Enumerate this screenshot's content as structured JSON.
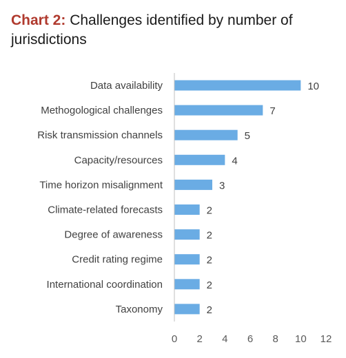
{
  "title": {
    "prefix": "Chart 2:",
    "text": "Challenges identified by number of jurisdictions"
  },
  "colors": {
    "bar": "#6aace4",
    "axis": "#bfbfbf",
    "title_prefix": "#b03a2e"
  },
  "chart_data": {
    "type": "bar",
    "orientation": "horizontal",
    "categories": [
      "Data availability",
      "Methogological challenges",
      "Risk transmission channels",
      "Capacity/resources",
      "Time horizon misalignment",
      "Climate-related forecasts",
      "Degree of awareness",
      "Credit rating regime",
      "International coordination",
      "Taxonomy"
    ],
    "values": [
      10,
      7,
      5,
      4,
      3,
      2,
      2,
      2,
      2,
      2
    ],
    "xlim": [
      0,
      12
    ],
    "xticks": [
      "0",
      "2",
      "4",
      "6",
      "8",
      "10",
      "12"
    ],
    "grid": false,
    "legend": "none"
  }
}
